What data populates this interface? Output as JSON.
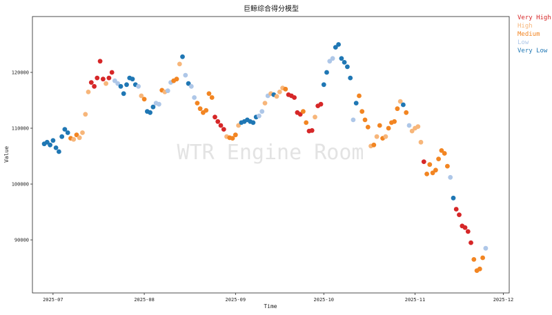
{
  "chart_data": {
    "type": "scatter",
    "title": "巨鲸综合得分模型",
    "xlabel": "Time",
    "ylabel": "Value",
    "watermark": "WTR Engine Room",
    "xlim": [
      "2025-06-24",
      "2025-12-03"
    ],
    "ylim": [
      80500,
      130000
    ],
    "x_ticks": [
      "2025-07-01",
      "2025-08-01",
      "2025-09-01",
      "2025-10-01",
      "2025-11-01",
      "2025-12-01"
    ],
    "x_tick_labels": [
      "2025-07",
      "2025-08",
      "2025-09",
      "2025-10",
      "2025-11",
      "2025-12"
    ],
    "y_ticks": [
      90000,
      100000,
      110000,
      120000
    ],
    "legend_position": "outside-top-right",
    "grid": false,
    "levels": [
      {
        "name": "Very High",
        "color": "#d62728"
      },
      {
        "name": "High",
        "color": "#f7b67a"
      },
      {
        "name": "Medium",
        "color": "#f28522"
      },
      {
        "name": "Low",
        "color": "#aec7e8"
      },
      {
        "name": "Very Low",
        "color": "#1f77b4"
      }
    ],
    "series_points": [
      [
        "2025-06-28",
        107200,
        4
      ],
      [
        "2025-06-29",
        107500,
        4
      ],
      [
        "2025-06-30",
        107000,
        4
      ],
      [
        "2025-07-01",
        107800,
        4
      ],
      [
        "2025-07-02",
        106500,
        4
      ],
      [
        "2025-07-03",
        105800,
        4
      ],
      [
        "2025-07-04",
        108500,
        4
      ],
      [
        "2025-07-05",
        109800,
        4
      ],
      [
        "2025-07-06",
        109200,
        4
      ],
      [
        "2025-07-07",
        108200,
        2
      ],
      [
        "2025-07-08",
        108000,
        1
      ],
      [
        "2025-07-09",
        108800,
        2
      ],
      [
        "2025-07-10",
        108300,
        1
      ],
      [
        "2025-07-11",
        109200,
        1
      ],
      [
        "2025-07-12",
        112500,
        1
      ],
      [
        "2025-07-13",
        116500,
        1
      ],
      [
        "2025-07-14",
        118200,
        0
      ],
      [
        "2025-07-15",
        117500,
        0
      ],
      [
        "2025-07-16",
        119000,
        0
      ],
      [
        "2025-07-17",
        122000,
        0
      ],
      [
        "2025-07-18",
        118800,
        0
      ],
      [
        "2025-07-19",
        118000,
        1
      ],
      [
        "2025-07-20",
        119000,
        0
      ],
      [
        "2025-07-21",
        120000,
        0
      ],
      [
        "2025-07-22",
        118500,
        3
      ],
      [
        "2025-07-23",
        118000,
        3
      ],
      [
        "2025-07-24",
        117500,
        4
      ],
      [
        "2025-07-25",
        116200,
        4
      ],
      [
        "2025-07-26",
        117800,
        4
      ],
      [
        "2025-07-27",
        119000,
        4
      ],
      [
        "2025-07-28",
        118800,
        4
      ],
      [
        "2025-07-29",
        117800,
        4
      ],
      [
        "2025-07-30",
        117500,
        3
      ],
      [
        "2025-07-31",
        115800,
        1
      ],
      [
        "2025-08-01",
        115200,
        2
      ],
      [
        "2025-08-02",
        113000,
        4
      ],
      [
        "2025-08-03",
        112800,
        4
      ],
      [
        "2025-08-04",
        113800,
        4
      ],
      [
        "2025-08-05",
        114500,
        3
      ],
      [
        "2025-08-06",
        114300,
        3
      ],
      [
        "2025-08-07",
        116800,
        2
      ],
      [
        "2025-08-08",
        116500,
        1
      ],
      [
        "2025-08-09",
        116700,
        3
      ],
      [
        "2025-08-10",
        118200,
        3
      ],
      [
        "2025-08-11",
        118500,
        2
      ],
      [
        "2025-08-12",
        118800,
        2
      ],
      [
        "2025-08-13",
        121500,
        1
      ],
      [
        "2025-08-14",
        122800,
        4
      ],
      [
        "2025-08-15",
        119500,
        3
      ],
      [
        "2025-08-16",
        118000,
        4
      ],
      [
        "2025-08-17",
        117500,
        3
      ],
      [
        "2025-08-18",
        115500,
        3
      ],
      [
        "2025-08-19",
        114500,
        2
      ],
      [
        "2025-08-20",
        113500,
        2
      ],
      [
        "2025-08-21",
        112800,
        2
      ],
      [
        "2025-08-22",
        113200,
        2
      ],
      [
        "2025-08-23",
        116200,
        2
      ],
      [
        "2025-08-24",
        115500,
        2
      ],
      [
        "2025-08-25",
        112000,
        0
      ],
      [
        "2025-08-26",
        111200,
        0
      ],
      [
        "2025-08-27",
        110500,
        0
      ],
      [
        "2025-08-28",
        109800,
        0
      ],
      [
        "2025-08-29",
        108500,
        1
      ],
      [
        "2025-08-30",
        108300,
        2
      ],
      [
        "2025-08-31",
        108200,
        2
      ],
      [
        "2025-09-01",
        108800,
        2
      ],
      [
        "2025-09-02",
        110500,
        1
      ],
      [
        "2025-09-03",
        111000,
        4
      ],
      [
        "2025-09-04",
        111200,
        4
      ],
      [
        "2025-09-05",
        111500,
        4
      ],
      [
        "2025-09-06",
        111200,
        4
      ],
      [
        "2025-09-07",
        111000,
        4
      ],
      [
        "2025-09-08",
        112000,
        4
      ],
      [
        "2025-09-09",
        112200,
        3
      ],
      [
        "2025-09-10",
        113000,
        3
      ],
      [
        "2025-09-11",
        114500,
        1
      ],
      [
        "2025-09-12",
        115800,
        3
      ],
      [
        "2025-09-13",
        116200,
        1
      ],
      [
        "2025-09-14",
        116000,
        4
      ],
      [
        "2025-09-15",
        115700,
        1
      ],
      [
        "2025-09-16",
        116500,
        1
      ],
      [
        "2025-09-17",
        117200,
        1
      ],
      [
        "2025-09-18",
        117000,
        2
      ],
      [
        "2025-09-19",
        116000,
        0
      ],
      [
        "2025-09-20",
        115800,
        0
      ],
      [
        "2025-09-21",
        115500,
        0
      ],
      [
        "2025-09-22",
        112800,
        0
      ],
      [
        "2025-09-23",
        112500,
        0
      ],
      [
        "2025-09-24",
        113000,
        2
      ],
      [
        "2025-09-25",
        111000,
        2
      ],
      [
        "2025-09-26",
        109500,
        0
      ],
      [
        "2025-09-27",
        109600,
        0
      ],
      [
        "2025-09-28",
        112000,
        1
      ],
      [
        "2025-09-29",
        114000,
        0
      ],
      [
        "2025-09-30",
        114300,
        0
      ],
      [
        "2025-10-01",
        117800,
        4
      ],
      [
        "2025-10-02",
        120000,
        4
      ],
      [
        "2025-10-03",
        122000,
        3
      ],
      [
        "2025-10-04",
        122500,
        3
      ],
      [
        "2025-10-05",
        124500,
        4
      ],
      [
        "2025-10-06",
        125000,
        4
      ],
      [
        "2025-10-07",
        122500,
        4
      ],
      [
        "2025-10-08",
        121800,
        4
      ],
      [
        "2025-10-09",
        121000,
        4
      ],
      [
        "2025-10-10",
        119000,
        4
      ],
      [
        "2025-10-11",
        111500,
        3
      ],
      [
        "2025-10-12",
        114500,
        4
      ],
      [
        "2025-10-13",
        115800,
        2
      ],
      [
        "2025-10-14",
        113000,
        2
      ],
      [
        "2025-10-15",
        111500,
        2
      ],
      [
        "2025-10-16",
        110200,
        2
      ],
      [
        "2025-10-17",
        106800,
        1
      ],
      [
        "2025-10-18",
        107000,
        2
      ],
      [
        "2025-10-19",
        108500,
        1
      ],
      [
        "2025-10-20",
        110500,
        2
      ],
      [
        "2025-10-21",
        108200,
        2
      ],
      [
        "2025-10-22",
        108500,
        1
      ],
      [
        "2025-10-23",
        110000,
        2
      ],
      [
        "2025-10-24",
        111000,
        2
      ],
      [
        "2025-10-25",
        111200,
        2
      ],
      [
        "2025-10-26",
        113500,
        2
      ],
      [
        "2025-10-27",
        114800,
        1
      ],
      [
        "2025-10-28",
        114200,
        4
      ],
      [
        "2025-10-29",
        112800,
        2
      ],
      [
        "2025-10-30",
        110500,
        3
      ],
      [
        "2025-10-31",
        109500,
        1
      ],
      [
        "2025-11-01",
        110000,
        1
      ],
      [
        "2025-11-02",
        110300,
        1
      ],
      [
        "2025-11-03",
        107500,
        1
      ],
      [
        "2025-11-04",
        104000,
        0
      ],
      [
        "2025-11-05",
        101800,
        2
      ],
      [
        "2025-11-06",
        103500,
        2
      ],
      [
        "2025-11-07",
        102000,
        2
      ],
      [
        "2025-11-08",
        102500,
        2
      ],
      [
        "2025-11-09",
        104500,
        2
      ],
      [
        "2025-11-10",
        106000,
        2
      ],
      [
        "2025-11-11",
        105500,
        2
      ],
      [
        "2025-11-12",
        103200,
        2
      ],
      [
        "2025-11-13",
        101200,
        3
      ],
      [
        "2025-11-14",
        97500,
        4
      ],
      [
        "2025-11-15",
        95500,
        0
      ],
      [
        "2025-11-16",
        94500,
        0
      ],
      [
        "2025-11-17",
        92500,
        0
      ],
      [
        "2025-11-18",
        92200,
        0
      ],
      [
        "2025-11-19",
        91500,
        0
      ],
      [
        "2025-11-20",
        89500,
        0
      ],
      [
        "2025-11-21",
        86500,
        2
      ],
      [
        "2025-11-22",
        84500,
        2
      ],
      [
        "2025-11-23",
        84800,
        2
      ],
      [
        "2025-11-24",
        86800,
        2
      ],
      [
        "2025-11-25",
        88500,
        3
      ]
    ]
  }
}
